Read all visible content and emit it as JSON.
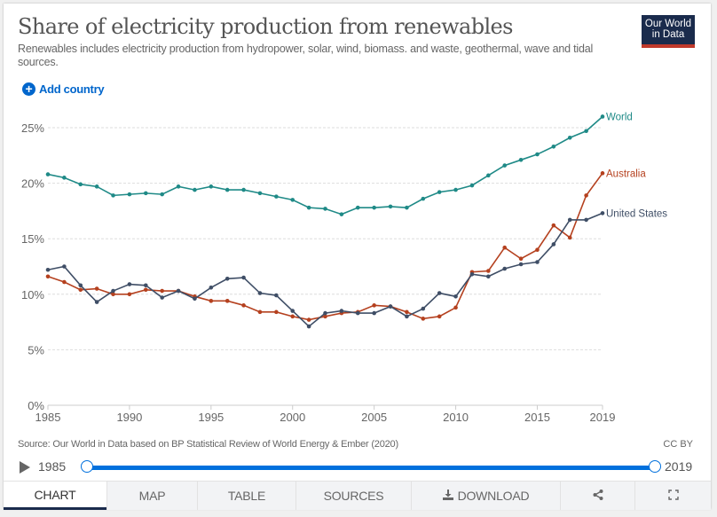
{
  "header": {
    "title": "Share of electricity production from renewables",
    "subtitle": "Renewables includes electricity production from hydropower, solar, wind, biomass. and waste, geothermal, wave and tidal sources.",
    "logo_line1": "Our World",
    "logo_line2": "in Data",
    "add_country_label": "Add country"
  },
  "footer": {
    "source": "Source: Our World in Data based on BP Statistical Review of World Energy & Ember (2020)",
    "license": "CC BY"
  },
  "timeline": {
    "start_year": "1985",
    "end_year": "2019",
    "play_icon": "play-icon"
  },
  "tabs": [
    {
      "label": "CHART",
      "active": true
    },
    {
      "label": "MAP"
    },
    {
      "label": "TABLE"
    },
    {
      "label": "SOURCES"
    },
    {
      "label": "DOWNLOAD",
      "icon": "download-icon"
    },
    {
      "label": "",
      "icon": "share-icon"
    },
    {
      "label": "",
      "icon": "fullscreen-icon"
    }
  ],
  "colors": {
    "world": "#1f8a87",
    "australia": "#b5411f",
    "united_states": "#3f4e66",
    "accent": "#0070dd"
  },
  "chart_data": {
    "type": "line",
    "title": "Share of electricity production from renewables",
    "xlabel": "",
    "ylabel": "",
    "x": [
      1985,
      1986,
      1987,
      1988,
      1989,
      1990,
      1991,
      1992,
      1993,
      1994,
      1995,
      1996,
      1997,
      1998,
      1999,
      2000,
      2001,
      2002,
      2003,
      2004,
      2005,
      2006,
      2007,
      2008,
      2009,
      2010,
      2011,
      2012,
      2013,
      2014,
      2015,
      2016,
      2017,
      2018,
      2019
    ],
    "xlim": [
      1985,
      2019
    ],
    "ylim": [
      0,
      25
    ],
    "x_ticks": [
      "1985",
      "1990",
      "1995",
      "2000",
      "2005",
      "2010",
      "2015",
      "2019"
    ],
    "y_ticks": [
      "0%",
      "5%",
      "10%",
      "15%",
      "20%",
      "25%"
    ],
    "grid": true,
    "legend": "end-of-line labels, right",
    "series": [
      {
        "name": "World",
        "values": [
          20.8,
          20.5,
          19.9,
          19.7,
          18.9,
          19.0,
          19.1,
          19.0,
          19.7,
          19.4,
          19.7,
          19.4,
          19.4,
          19.1,
          18.8,
          18.5,
          17.8,
          17.7,
          17.2,
          17.8,
          17.8,
          17.9,
          17.8,
          18.6,
          19.2,
          19.4,
          19.8,
          20.7,
          21.6,
          22.1,
          22.6,
          23.3,
          24.1,
          24.7,
          26.0
        ]
      },
      {
        "name": "Australia",
        "values": [
          11.6,
          11.1,
          10.4,
          10.5,
          10.0,
          10.0,
          10.4,
          10.3,
          10.3,
          9.8,
          9.4,
          9.4,
          9.0,
          8.4,
          8.4,
          8.0,
          7.7,
          8.0,
          8.3,
          8.4,
          9.0,
          8.9,
          8.4,
          7.8,
          8.0,
          8.8,
          12.0,
          12.1,
          14.2,
          13.2,
          14.0,
          16.2,
          15.1,
          18.9,
          20.9
        ]
      },
      {
        "name": "United States",
        "values": [
          12.2,
          12.5,
          10.8,
          9.3,
          10.3,
          10.9,
          10.8,
          9.7,
          10.3,
          9.6,
          10.6,
          11.4,
          11.5,
          10.1,
          9.9,
          8.5,
          7.1,
          8.3,
          8.5,
          8.3,
          8.3,
          8.9,
          8.0,
          8.7,
          10.1,
          9.8,
          11.8,
          11.6,
          12.3,
          12.7,
          12.9,
          14.5,
          16.7,
          16.7,
          17.3
        ]
      }
    ]
  }
}
